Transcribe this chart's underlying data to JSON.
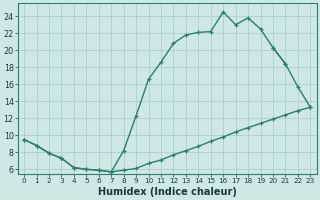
{
  "xlabel": "Humidex (Indice chaleur)",
  "background_color": "#cde8e5",
  "grid_color": "#aecfcc",
  "line_color": "#2e7d6e",
  "xlim": [
    -0.5,
    23.5
  ],
  "ylim": [
    5.5,
    25.5
  ],
  "xticks": [
    0,
    1,
    2,
    3,
    4,
    5,
    6,
    7,
    8,
    9,
    10,
    11,
    12,
    13,
    14,
    15,
    16,
    17,
    18,
    19,
    20,
    21,
    22,
    23
  ],
  "yticks": [
    6,
    8,
    10,
    12,
    14,
    16,
    18,
    20,
    22,
    24
  ],
  "curve_top": {
    "x": [
      0,
      1,
      2,
      3,
      4,
      5,
      6,
      7,
      8,
      9,
      10,
      11,
      12,
      13,
      14,
      15,
      16,
      17,
      18,
      19,
      20,
      21
    ],
    "y": [
      9.5,
      8.8,
      7.9,
      7.3,
      6.2,
      6.0,
      5.9,
      5.7,
      8.2,
      12.3,
      16.6,
      18.6,
      20.8,
      21.8,
      22.1,
      22.2,
      24.5,
      23.0,
      23.8,
      22.5,
      20.3,
      18.4
    ]
  },
  "curve_bottom": {
    "x": [
      0,
      1,
      2,
      3,
      4,
      5,
      6,
      7,
      8,
      9,
      10,
      11,
      12,
      13,
      14,
      15,
      16,
      17,
      18,
      19,
      20,
      21,
      22,
      23
    ],
    "y": [
      9.5,
      8.8,
      7.9,
      7.3,
      6.2,
      6.0,
      5.9,
      5.7,
      5.9,
      6.1,
      6.7,
      7.1,
      7.7,
      8.2,
      8.7,
      9.3,
      9.8,
      10.4,
      10.9,
      11.4,
      11.9,
      12.4,
      12.9,
      13.3
    ]
  },
  "curve_right": {
    "x": [
      20,
      21,
      22,
      23
    ],
    "y": [
      20.3,
      18.4,
      15.7,
      13.3
    ]
  }
}
